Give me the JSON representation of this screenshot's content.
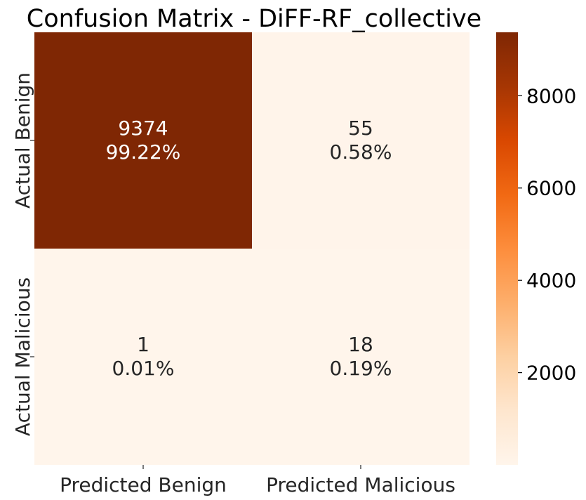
{
  "chart_data": {
    "type": "heatmap",
    "title": "Confusion Matrix - DiFF-RF_collective",
    "row_labels": [
      "Actual Benign",
      "Actual Malicious"
    ],
    "col_labels": [
      "Predicted Benign",
      "Predicted Malicious"
    ],
    "cells": [
      [
        {
          "count": 9374,
          "count_label": "9374",
          "pct_label": "99.22%"
        },
        {
          "count": 55,
          "count_label": "55",
          "pct_label": "0.58%"
        }
      ],
      [
        {
          "count": 1,
          "count_label": "1",
          "pct_label": "0.01%"
        },
        {
          "count": 18,
          "count_label": "18",
          "pct_label": "0.19%"
        }
      ]
    ],
    "colormap": "Oranges",
    "color_range": [
      1,
      9374
    ],
    "colorbar": {
      "ticks": [
        2000,
        4000,
        6000,
        8000
      ],
      "tick_labels": [
        "2000",
        "4000",
        "6000",
        "8000"
      ]
    },
    "colors": {
      "low": "#fff5eb",
      "high": "#7f2704",
      "text_dark": "#262626",
      "text_light": "#ffffff"
    }
  }
}
